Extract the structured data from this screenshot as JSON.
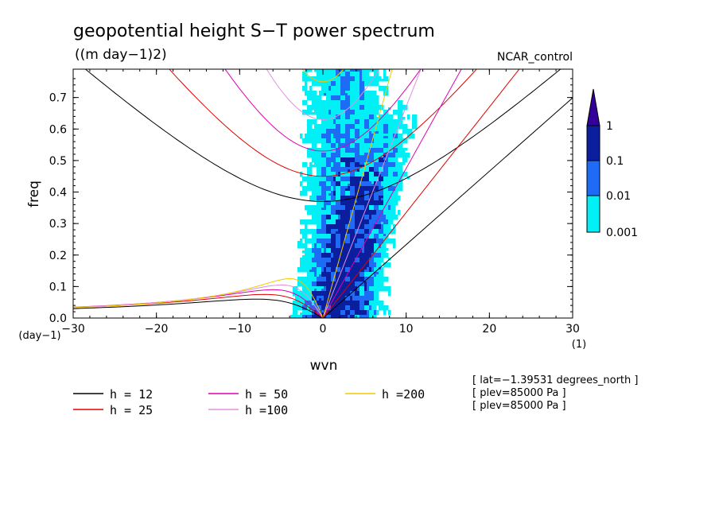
{
  "chart_data": {
    "type": "contour",
    "title": "geopotential height S−T power spectrum",
    "subtitle": "((m day−1)2)",
    "label_right": "NCAR_control",
    "xlabel": "wvn",
    "ylabel": "freq",
    "x_unit": "(1)",
    "y_unit": "(day−1)",
    "xlim": [
      -30,
      30
    ],
    "ylim": [
      0,
      0.79
    ],
    "x_ticks": [
      -30,
      -20,
      -10,
      0,
      10,
      20,
      30
    ],
    "x_tick_labels": [
      "−30",
      "−20",
      "−10",
      "0",
      "10",
      "20",
      "30"
    ],
    "y_ticks": [
      0.0,
      0.1,
      0.2,
      0.3,
      0.4,
      0.5,
      0.6,
      0.7
    ],
    "y_tick_labels": [
      "0.0",
      "0.1",
      "0.2",
      "0.3",
      "0.4",
      "0.5",
      "0.6",
      "0.7"
    ],
    "colorbar": {
      "levels": [
        "1",
        "0.1",
        "0.01",
        "0.001"
      ],
      "colors": [
        "#330099",
        "#0a1e9e",
        "#1e6cf5",
        "#00f0f5"
      ]
    },
    "dispersion_series": [
      {
        "name": "h = 12",
        "color": "#000000",
        "min_freq": 0.37,
        "kelvin_slope": 0.0233
      },
      {
        "name": "h = 25",
        "color": "#e00000",
        "min_freq": 0.45,
        "kelvin_slope": 0.0335
      },
      {
        "name": "h = 50",
        "color": "#e000b0",
        "min_freq": 0.53,
        "kelvin_slope": 0.0475
      },
      {
        "name": "h =100",
        "color": "#e090e0",
        "min_freq": 0.63,
        "kelvin_slope": 0.0671
      },
      {
        "name": "h =200",
        "color": "#f0c800",
        "min_freq": 0.75,
        "kelvin_slope": 0.095
      }
    ],
    "legend_placement": "bottom-left",
    "annotations": [
      "[ lat=−1.39531 degrees_north ]",
      "[ plev=85000 Pa ]",
      "[ plev=85000 Pa ]"
    ]
  }
}
